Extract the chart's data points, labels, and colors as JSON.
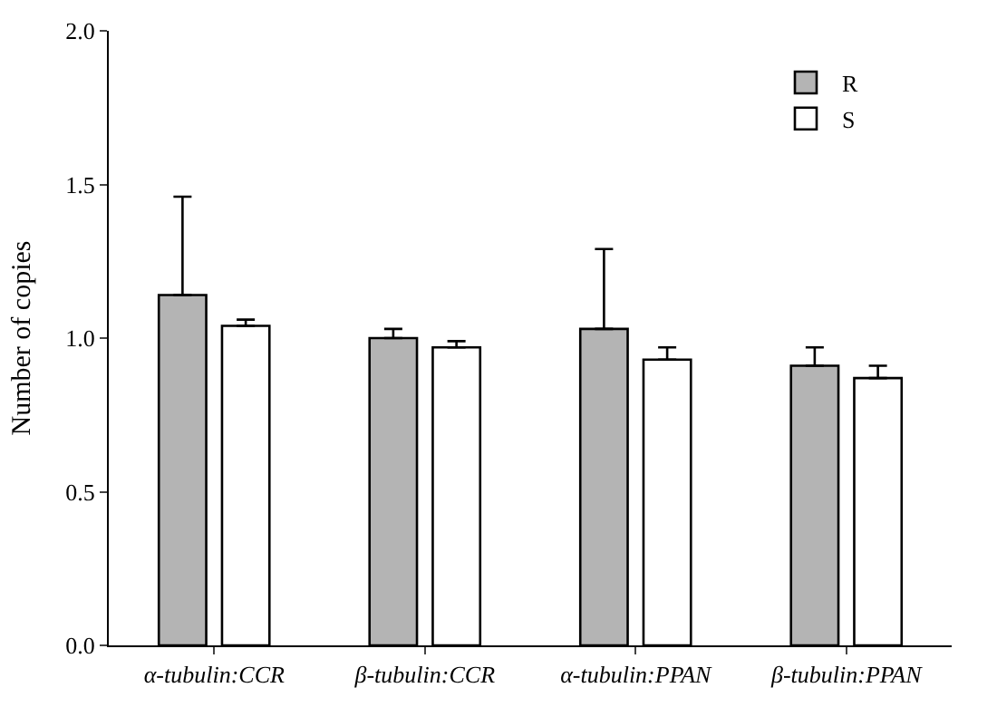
{
  "chart_data": {
    "type": "bar",
    "ylabel": "Number of copies",
    "categories": [
      "α-tubulin:CCR",
      "β-tubulin:CCR",
      "α-tubulin:PPAN",
      "β-tubulin:PPAN"
    ],
    "series": [
      {
        "name": "R",
        "color": "#b4b4b4",
        "values": [
          1.14,
          1.0,
          1.03,
          0.91
        ],
        "errors": [
          [
            1.14,
            1.46
          ],
          [
            1.0,
            1.03
          ],
          [
            1.03,
            1.29
          ],
          [
            0.91,
            0.97
          ]
        ]
      },
      {
        "name": "S",
        "color": "#ffffff",
        "values": [
          1.04,
          0.97,
          0.93,
          0.87
        ],
        "errors": [
          [
            1.04,
            1.06
          ],
          [
            0.97,
            0.99
          ],
          [
            0.93,
            0.97
          ],
          [
            0.87,
            0.91
          ]
        ]
      }
    ],
    "ylim": [
      0,
      2.0
    ],
    "yticks": [
      {
        "value": 0,
        "label": "0.0"
      },
      {
        "value": 0.5,
        "label": "0.5"
      },
      {
        "value": 1.0,
        "label": "1.0"
      },
      {
        "value": 1.5,
        "label": "1.5"
      },
      {
        "value": 2.0,
        "label": "2.0"
      }
    ],
    "legend": "top right"
  }
}
